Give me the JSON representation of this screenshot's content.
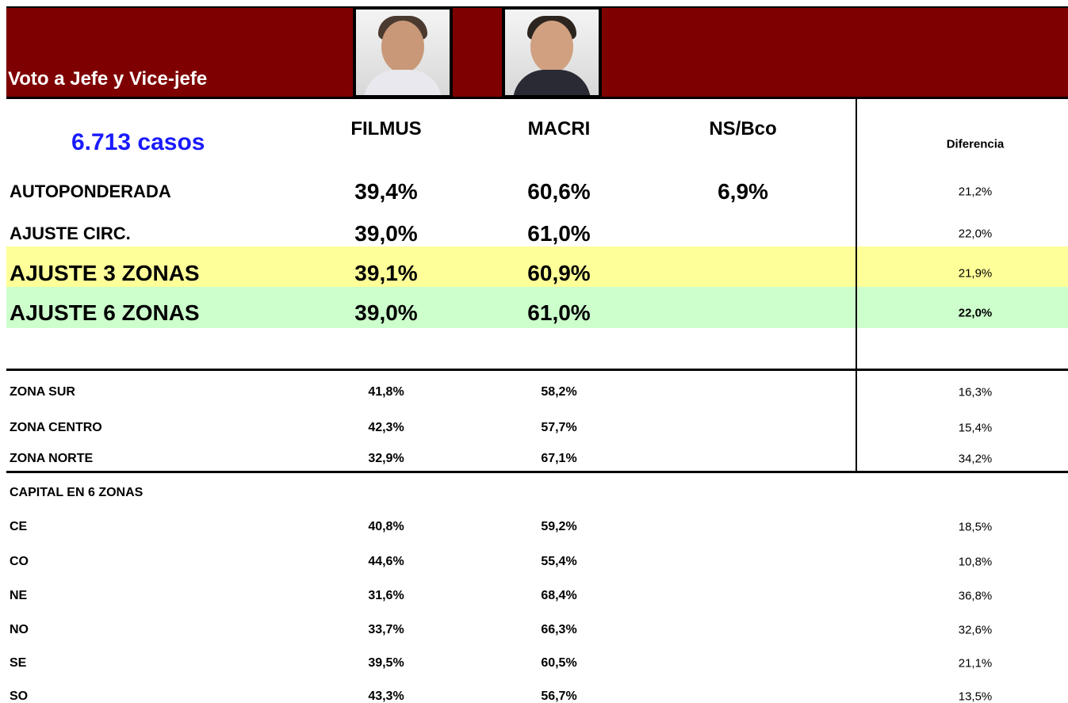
{
  "header": {
    "title": "Voto a Jefe y Vice-jefe",
    "cases": "6.713  casos"
  },
  "table": {
    "columns": [
      "FILMUS",
      "MACRI",
      "NS/Bco",
      "Diferencia"
    ],
    "rows": [
      {
        "label": "AUTOPONDERADA",
        "values": [
          "39,4%",
          "60,6%",
          "6,9%",
          "21,2%"
        ]
      },
      {
        "label": "AJUSTE CIRC.",
        "values": [
          "39,0%",
          "61,0%",
          null,
          "22,0%"
        ]
      },
      {
        "label": "AJUSTE  3 ZONAS",
        "values": [
          "39,1%",
          "60,9%",
          null,
          "21,9%"
        ]
      },
      {
        "label": "AJUSTE  6 ZONAS",
        "values": [
          "39,0%",
          "61,0%",
          null,
          "22,0%"
        ]
      },
      {
        "label": "ZONA SUR",
        "values": [
          "41,8%",
          "58,2%",
          null,
          "16,3%"
        ]
      },
      {
        "label": "ZONA CENTRO",
        "values": [
          "42,3%",
          "57,7%",
          null,
          "15,4%"
        ]
      },
      {
        "label": "ZONA NORTE",
        "values": [
          "32,9%",
          "67,1%",
          null,
          "34,2%"
        ]
      },
      {
        "label": "CAPITAL EN 6 ZONAS",
        "values": [
          null,
          null,
          null,
          null
        ]
      },
      {
        "label": "CE",
        "values": [
          "40,8%",
          "59,2%",
          null,
          "18,5%"
        ]
      },
      {
        "label": "CO",
        "values": [
          "44,6%",
          "55,4%",
          null,
          "10,8%"
        ]
      },
      {
        "label": "NE",
        "values": [
          "31,6%",
          "68,4%",
          null,
          "36,8%"
        ]
      },
      {
        "label": "NO",
        "values": [
          "33,7%",
          "66,3%",
          null,
          "32,6%"
        ]
      },
      {
        "label": "SE",
        "values": [
          "39,5%",
          "60,5%",
          null,
          "21,1%"
        ]
      },
      {
        "label": "SO",
        "values": [
          "43,3%",
          "56,7%",
          null,
          "13,5%"
        ]
      }
    ]
  }
}
